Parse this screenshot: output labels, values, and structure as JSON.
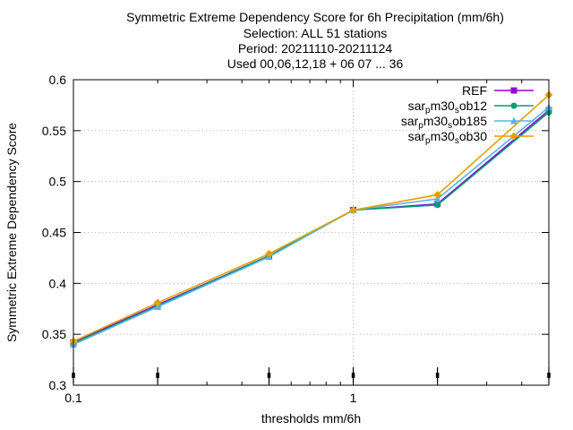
{
  "chart_data": {
    "type": "line",
    "title_lines": [
      "Symmetric Extreme Dependency Score  for 6h Precipitation (mm/6h)",
      "Selection: ALL     51 stations",
      "Period: 20211110-20211124",
      "Used 00,06,12,18 + 06 07 ... 36"
    ],
    "xlabel": "thresholds mm/6h",
    "ylabel": "Symmetric Extreme Dependency Score",
    "x_scale": "log",
    "xlim": [
      0.1,
      5
    ],
    "ylim": [
      0.3,
      0.6
    ],
    "y_ticks": [
      "0.3",
      "0.35",
      "0.4",
      "0.45",
      "0.5",
      "0.55",
      "0.6"
    ],
    "x_ticks": [
      "0.1",
      "1"
    ],
    "x": [
      0.1,
      0.2,
      0.5,
      1,
      2,
      5
    ],
    "legend_position": "top-right",
    "series": [
      {
        "name": "REF",
        "legend_parts": [
          [
            "REF",
            ""
          ]
        ],
        "color": "#9400d3",
        "marker": "filled-square",
        "values": [
          0.342,
          0.379,
          0.427,
          0.472,
          0.478,
          0.57
        ]
      },
      {
        "name": "sar_pm30_sob12",
        "legend_parts": [
          [
            "sar",
            ""
          ],
          [
            "p",
            "sub"
          ],
          [
            "m30",
            ""
          ],
          [
            "s",
            "sub"
          ],
          [
            "ob12",
            ""
          ]
        ],
        "color": "#009e73",
        "marker": "filled-circle",
        "values": [
          0.341,
          0.378,
          0.427,
          0.472,
          0.477,
          0.568
        ]
      },
      {
        "name": "sar_pm30_sob185",
        "legend_parts": [
          [
            "sar",
            ""
          ],
          [
            "p",
            "sub"
          ],
          [
            "m30",
            ""
          ],
          [
            "s",
            "sub"
          ],
          [
            "ob185",
            ""
          ]
        ],
        "color": "#56b4e9",
        "marker": "filled-triangle",
        "values": [
          0.34,
          0.377,
          0.426,
          0.472,
          0.483,
          0.573
        ]
      },
      {
        "name": "sar_pm30_sob30",
        "legend_parts": [
          [
            "sar",
            ""
          ],
          [
            "p",
            "sub"
          ],
          [
            "m30",
            ""
          ],
          [
            "s",
            "sub"
          ],
          [
            "ob30",
            ""
          ]
        ],
        "color": "#e69f00",
        "marker": "filled-diamond",
        "values": [
          0.343,
          0.381,
          0.429,
          0.472,
          0.487,
          0.585
        ]
      }
    ],
    "threshold_markers_x": [
      0.1,
      0.2,
      0.5,
      1,
      2,
      5
    ]
  }
}
